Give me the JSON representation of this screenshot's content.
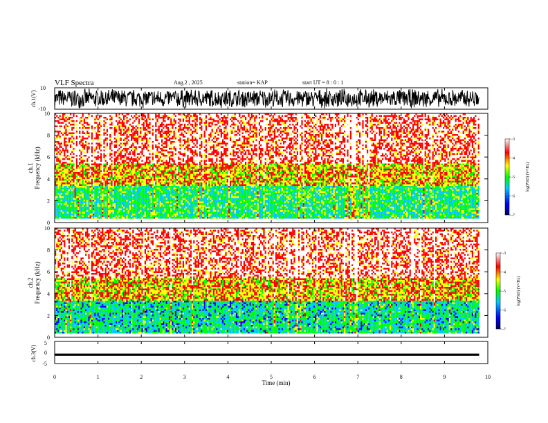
{
  "header": {
    "title": "VLF Spectra",
    "date": "Aug.2  , 2025",
    "station": "station= KAP",
    "start": "start  UT =   8 : 0  : 1"
  },
  "colorbar_labels": [
    "-3",
    "-4",
    "-5",
    "-6",
    "-7"
  ],
  "colorbar_title": "log(PSD) (V²/Hz)",
  "chart_data": [
    {
      "type": "line",
      "name": "ch.1 waveform",
      "ylabel": "ch.1(V)",
      "ylim": [
        -10,
        10
      ],
      "yticks": [
        "10",
        "-10"
      ],
      "xlim": [
        0,
        9.8
      ],
      "description_values": "dense noisy waveform filling most of range"
    },
    {
      "type": "heatmap",
      "ylabel_top": "ch.1",
      "ylabel": "Frequency  (kHz)",
      "ylim": [
        0,
        10
      ],
      "yticks": [
        "0",
        "2",
        "4",
        "6",
        "8",
        "10"
      ],
      "xlim": [
        0,
        9.8
      ],
      "colorscale": {
        "min": -7,
        "max": -3,
        "colors": [
          "#000060",
          "#0000ff",
          "#00c8ff",
          "#00ff00",
          "#ffff00",
          "#ff0000",
          "#ffffff"
        ]
      },
      "bands": [
        {
          "from_khz": 0.4,
          "to_khz": 3.4,
          "level": -5.2
        },
        {
          "from_khz": 3.4,
          "to_khz": 5.5,
          "level": -4.2
        },
        {
          "from_khz": 5.5,
          "to_khz": 10,
          "level": -3.4
        }
      ]
    },
    {
      "type": "heatmap",
      "ylabel_top": "ch.2",
      "ylabel": "Frequency  (kHz)",
      "ylim": [
        0,
        10
      ],
      "yticks": [
        "0",
        "2",
        "4",
        "6",
        "8",
        "10"
      ],
      "xlim": [
        0,
        9.8
      ],
      "colorscale": {
        "min": -7,
        "max": -3,
        "colors": [
          "#000060",
          "#0000ff",
          "#00c8ff",
          "#00ff00",
          "#ffff00",
          "#ff0000",
          "#ffffff"
        ]
      },
      "bands": [
        {
          "from_khz": 0.4,
          "to_khz": 3.4,
          "level": -5.4
        },
        {
          "from_khz": 3.4,
          "to_khz": 5.5,
          "level": -4.2
        },
        {
          "from_khz": 5.5,
          "to_khz": 10,
          "level": -3.4
        }
      ]
    },
    {
      "type": "line",
      "name": "ch.3 waveform",
      "ylabel": "ch.3(V)",
      "ylim": [
        -5,
        5
      ],
      "yticks": [
        "5",
        "0",
        "-5"
      ],
      "xlim": [
        0,
        9.8
      ],
      "description_values": "narrow band around -1 V"
    }
  ],
  "x_axis": {
    "xlabel": "Time  (min)",
    "xlim": [
      0,
      10
    ],
    "ticks": [
      "0",
      "1",
      "2",
      "3",
      "4",
      "5",
      "6",
      "7",
      "8",
      "9",
      "10"
    ]
  }
}
